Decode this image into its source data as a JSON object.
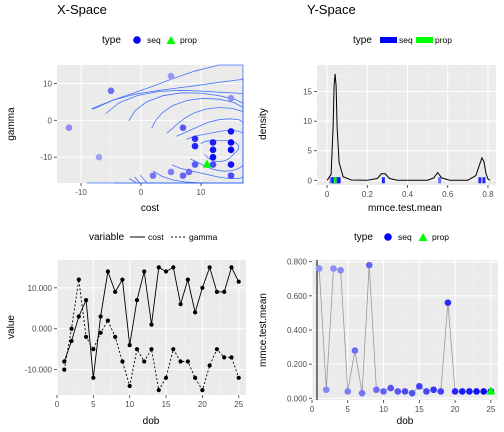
{
  "chart_data": [
    {
      "type": "scatter",
      "title": "X-Space",
      "xlabel": "cost",
      "ylabel": "gamma",
      "xlim": [
        -14,
        17
      ],
      "ylim": [
        -17,
        15
      ],
      "xticks": [
        -10,
        0,
        10
      ],
      "yticks": [
        -10,
        0,
        10
      ],
      "grid": true,
      "legend": {
        "title": "type",
        "position": "top",
        "entries": [
          "seq",
          "prop"
        ]
      },
      "series": [
        {
          "name": "seq",
          "color": "#0000ff",
          "points": [
            {
              "x": -12,
              "y": -2,
              "d": 0.2
            },
            {
              "x": -7,
              "y": -10,
              "d": 0.1
            },
            {
              "x": -5,
              "y": 8,
              "d": 0.4
            },
            {
              "x": 5,
              "y": 12,
              "d": 0.15
            },
            {
              "x": 15,
              "y": 6,
              "d": 0.2
            },
            {
              "x": 2,
              "y": -15,
              "d": 0.35
            },
            {
              "x": 5,
              "y": -14,
              "d": 0.3
            },
            {
              "x": 7,
              "y": -15,
              "d": 0.45
            },
            {
              "x": 9,
              "y": -12,
              "d": 0.5
            },
            {
              "x": 9,
              "y": -5,
              "d": 0.75
            },
            {
              "x": 9,
              "y": -7,
              "d": 0.8
            },
            {
              "x": 12,
              "y": -6,
              "d": 0.85
            },
            {
              "x": 12,
              "y": -8,
              "d": 0.9
            },
            {
              "x": 12,
              "y": -10,
              "d": 0.95
            },
            {
              "x": 15,
              "y": -3,
              "d": 0.9
            },
            {
              "x": 15,
              "y": -6,
              "d": 0.95
            },
            {
              "x": 15,
              "y": -8,
              "d": 1.0
            },
            {
              "x": 15,
              "y": -12,
              "d": 0.9
            },
            {
              "x": 15,
              "y": -15,
              "d": 0.6
            },
            {
              "x": 12,
              "y": -12,
              "d": 0.6
            },
            {
              "x": 8,
              "y": -14,
              "d": 0.4
            },
            {
              "x": 7,
              "y": -2,
              "d": 0.5
            }
          ]
        },
        {
          "name": "prop",
          "color": "#00ff00",
          "points": [
            {
              "x": 11,
              "y": -12
            }
          ]
        }
      ]
    },
    {
      "type": "line",
      "title": "Y-Space",
      "xlabel": "mmce.test.mean",
      "ylabel": "density",
      "xlim": [
        -0.05,
        0.84
      ],
      "ylim": [
        -0.8,
        19.5
      ],
      "xticks": [
        0.0,
        0.2,
        0.4,
        0.6,
        0.8
      ],
      "yticks": [
        0,
        5,
        10,
        15
      ],
      "grid": true,
      "legend": {
        "title": "type",
        "position": "top",
        "entries": [
          "seq",
          "prop"
        ]
      },
      "density_curve": [
        [
          0.0,
          0
        ],
        [
          0.02,
          1
        ],
        [
          0.03,
          9
        ],
        [
          0.035,
          16
        ],
        [
          0.04,
          18
        ],
        [
          0.045,
          16
        ],
        [
          0.05,
          9
        ],
        [
          0.06,
          3
        ],
        [
          0.08,
          0.6
        ],
        [
          0.12,
          0.05
        ],
        [
          0.2,
          0.02
        ],
        [
          0.25,
          0.3
        ],
        [
          0.27,
          1.1
        ],
        [
          0.29,
          1.1
        ],
        [
          0.31,
          0.3
        ],
        [
          0.35,
          0.02
        ],
        [
          0.5,
          0.02
        ],
        [
          0.53,
          0.4
        ],
        [
          0.55,
          1.3
        ],
        [
          0.57,
          0.4
        ],
        [
          0.61,
          0.02
        ],
        [
          0.7,
          0.02
        ],
        [
          0.74,
          0.8
        ],
        [
          0.76,
          2.8
        ],
        [
          0.77,
          3.8
        ],
        [
          0.78,
          3.2
        ],
        [
          0.79,
          1.2
        ],
        [
          0.8,
          0.2
        ],
        [
          0.81,
          0
        ]
      ],
      "rug_seq": [
        0.02,
        0.03,
        0.035,
        0.04,
        0.045,
        0.05,
        0.055,
        0.06,
        0.28,
        0.56,
        0.76,
        0.78
      ],
      "rug_prop": [
        0.04
      ]
    },
    {
      "type": "line",
      "xlabel": "dob",
      "ylabel": "value",
      "xlim": [
        0,
        26
      ],
      "ylim": [
        -16200,
        16800
      ],
      "xticks": [
        0,
        5,
        10,
        15,
        20,
        25
      ],
      "yticks": [
        -10000,
        0,
        10000
      ],
      "ytick_labels": [
        "-10.000",
        "0.000",
        "10.000"
      ],
      "grid": true,
      "legend": {
        "title": "variable",
        "position": "top",
        "entries": [
          "cost",
          "gamma"
        ]
      },
      "x": [
        1,
        2,
        3,
        4,
        5,
        6,
        7,
        8,
        9,
        10,
        11,
        12,
        13,
        14,
        15,
        16,
        17,
        18,
        19,
        20,
        21,
        22,
        23,
        24,
        25
      ],
      "series": [
        {
          "name": "cost",
          "dash": "solid",
          "values": [
            -8000,
            -3000,
            3000,
            7000,
            -12000,
            3000,
            14000,
            9000,
            12000,
            -4000,
            7000,
            14000,
            1000,
            15000,
            14000,
            15000,
            6000,
            12000,
            4000,
            10000,
            15000,
            9000,
            9000,
            15000,
            11500
          ]
        },
        {
          "name": "gamma",
          "dash": "dashed",
          "values": [
            -10000,
            0,
            12000,
            -2000,
            -5000,
            -1000,
            2000,
            -2000,
            -8000,
            -14000,
            -5000,
            -8000,
            -5000,
            -15000,
            -12000,
            -5000,
            -8000,
            -8000,
            -12000,
            -15000,
            -9000,
            -5000,
            -7000,
            -7000,
            -12000
          ]
        }
      ]
    },
    {
      "type": "line",
      "xlabel": "dob",
      "ylabel": "mmce.test.mean",
      "xlim": [
        0,
        26
      ],
      "ylim": [
        -0.01,
        0.81
      ],
      "xticks": [
        0,
        5,
        10,
        15,
        20,
        25
      ],
      "yticks": [
        0.0,
        0.2,
        0.4,
        0.6,
        0.8
      ],
      "ytick_labels": [
        "0.000",
        "0.200",
        "0.400",
        "0.600",
        "0.800"
      ],
      "grid": true,
      "vline_x": 0.7,
      "legend": {
        "title": "type",
        "position": "top",
        "entries": [
          "seq",
          "prop"
        ]
      },
      "x": [
        1,
        2,
        3,
        4,
        5,
        6,
        7,
        8,
        9,
        10,
        11,
        12,
        13,
        14,
        15,
        16,
        17,
        18,
        19,
        20,
        21,
        22,
        23,
        24,
        25
      ],
      "series": [
        {
          "name": "seq",
          "color": "#0000ff",
          "values": [
            0.76,
            0.05,
            0.76,
            0.75,
            0.04,
            0.28,
            0.03,
            0.78,
            0.05,
            0.04,
            0.06,
            0.04,
            0.04,
            0.03,
            0.07,
            0.04,
            0.05,
            0.04,
            0.56,
            0.04,
            0.04,
            0.04,
            0.04,
            0.04,
            0.04
          ],
          "shade": [
            0.2,
            0.25,
            0.2,
            0.25,
            0.3,
            0.4,
            0.35,
            0.45,
            0.4,
            0.45,
            0.55,
            0.5,
            0.6,
            0.55,
            0.65,
            0.6,
            0.7,
            0.65,
            0.75,
            0.8,
            0.85,
            0.85,
            0.9,
            0.95,
            1.0
          ]
        },
        {
          "name": "prop",
          "color": "#00ff00",
          "x": [
            25
          ],
          "values": [
            0.04
          ]
        }
      ]
    }
  ]
}
